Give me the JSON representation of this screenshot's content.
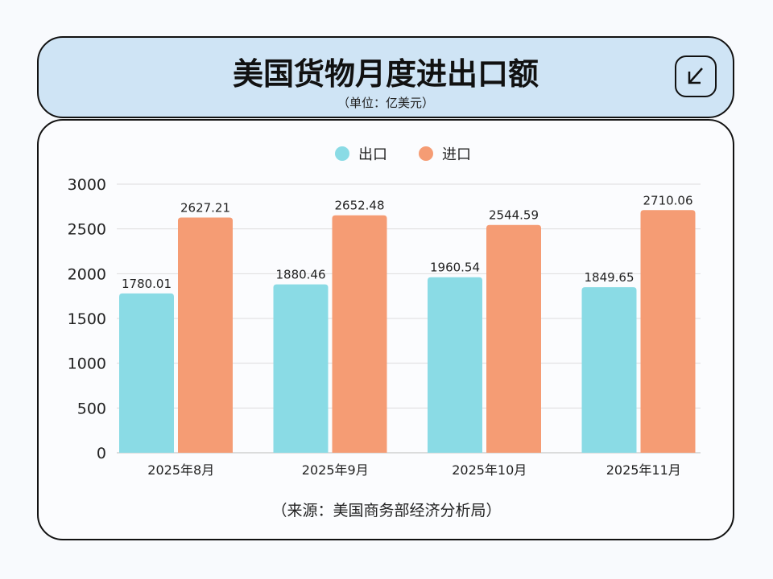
{
  "header": {
    "title": "美国货物月度进出口额",
    "subtitle": "（单位：亿美元）",
    "icon": "arrow-down-left-icon"
  },
  "source": "（来源：美国商务部经济分析局）",
  "chart_data": {
    "type": "bar",
    "categories": [
      "2025年8月",
      "2025年9月",
      "2025年10月",
      "2025年11月"
    ],
    "series": [
      {
        "name": "出口",
        "color": "#8adbe5",
        "values": [
          1780.01,
          1880.46,
          1960.54,
          1849.65
        ]
      },
      {
        "name": "进口",
        "color": "#f59c74",
        "values": [
          2627.21,
          2652.48,
          2544.59,
          2710.06
        ]
      }
    ],
    "ylim": [
      0,
      3000
    ],
    "yticks": [
      0,
      500,
      1000,
      1500,
      2000,
      2500,
      3000
    ],
    "grid": true,
    "legend": "top-center"
  }
}
